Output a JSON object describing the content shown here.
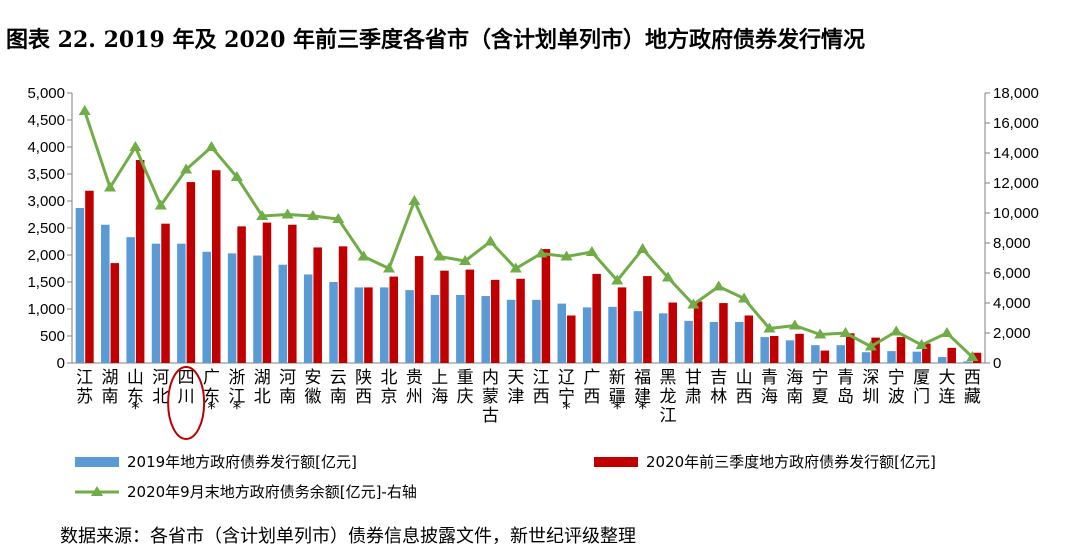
{
  "title": "图表 22. 2019 年及 2020 年前三季度各省市（含计划单列市）地方政府债券发行情况",
  "source": "数据来源：各省市（含计划单列市）债券信息披露文件，新世纪评级整理",
  "colors": {
    "blue": "#5B9BD5",
    "red": "#C00000",
    "green": "#70AD47",
    "annotation": "#C00000"
  },
  "chart_data": {
    "type": "bar",
    "categories": [
      "江苏",
      "湖南",
      "山东*",
      "河北",
      "四川",
      "广东*",
      "浙江*",
      "湖北",
      "河南",
      "安徽",
      "云南",
      "陕西",
      "北京",
      "贵州",
      "上海",
      "重庆",
      "内蒙古",
      "天津",
      "江西",
      "辽宁*",
      "广西",
      "新疆*",
      "福建*",
      "黑龙江",
      "甘肃",
      "吉林",
      "山西",
      "青海",
      "海南",
      "宁夏",
      "青岛",
      "深圳",
      "宁波",
      "厦门",
      "大连",
      "西藏"
    ],
    "series": [
      {
        "name": "2019年地方政府债券发行额[亿元]",
        "type": "bar",
        "axis": "left",
        "color": "#5B9BD5",
        "values": [
          2870,
          2560,
          2330,
          2210,
          2210,
          2060,
          2030,
          1990,
          1820,
          1640,
          1500,
          1400,
          1400,
          1350,
          1260,
          1260,
          1240,
          1170,
          1170,
          1100,
          1030,
          1040,
          960,
          920,
          780,
          760,
          760,
          480,
          420,
          330,
          330,
          200,
          220,
          210,
          110,
          30
        ]
      },
      {
        "name": "2020年前三季度地方政府债券发行额[亿元]",
        "type": "bar",
        "axis": "left",
        "color": "#C00000",
        "values": [
          3190,
          1850,
          3760,
          2580,
          3350,
          3570,
          2530,
          2600,
          2560,
          2140,
          2160,
          1400,
          1600,
          1980,
          1710,
          1730,
          1540,
          1560,
          2110,
          880,
          1650,
          1400,
          1610,
          1120,
          1140,
          1110,
          880,
          500,
          540,
          230,
          550,
          470,
          480,
          360,
          280,
          190
        ]
      },
      {
        "name": "2020年9月末地方政府债务余额[亿元]-右轴",
        "type": "line",
        "axis": "right",
        "color": "#70AD47",
        "values": [
          16800,
          11700,
          14400,
          10500,
          12900,
          14400,
          12400,
          9800,
          9900,
          9800,
          9600,
          7100,
          6300,
          10800,
          7100,
          6800,
          8100,
          6300,
          7300,
          7100,
          7400,
          5500,
          7600,
          5700,
          3900,
          5100,
          4300,
          2300,
          2500,
          1900,
          2000,
          1100,
          2100,
          1200,
          2000,
          400
        ]
      }
    ],
    "y_left": {
      "min": 0,
      "max": 5000,
      "step": 500,
      "tick_labels": [
        "0",
        "500",
        "1,000",
        "1,500",
        "2,000",
        "2,500",
        "3,000",
        "3,500",
        "4,000",
        "4,500",
        "5,000"
      ]
    },
    "y_right": {
      "min": 0,
      "max": 18000,
      "step": 2000,
      "tick_labels": [
        "0",
        "2,000",
        "4,000",
        "6,000",
        "8,000",
        "10,000",
        "12,000",
        "14,000",
        "16,000",
        "18,000"
      ]
    },
    "highlight_category": "四川",
    "grid": false,
    "legend_position": "bottom"
  }
}
